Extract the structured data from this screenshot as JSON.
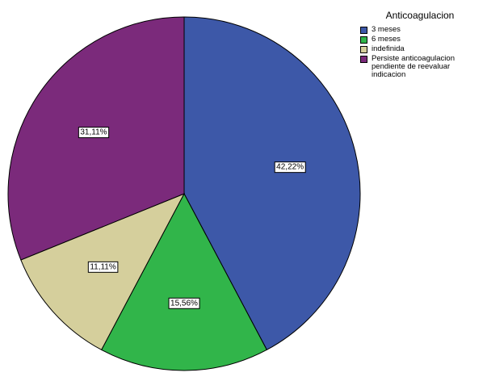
{
  "chart_data": {
    "type": "pie",
    "legend_title": "Anticoagulacion",
    "legend_position": "top-right",
    "categories": [
      "3 meses",
      "6 meses",
      "indefinida",
      "Persiste anticoagulacion\npendiente de reevaluar\nindicacion"
    ],
    "values": [
      42.22,
      15.56,
      11.11,
      31.11
    ],
    "labels": [
      "42,22%",
      "15,56%",
      "11,11%",
      "31,11%"
    ],
    "colors": [
      "#3d58a8",
      "#31b54a",
      "#d5cf9c",
      "#7b2a7b"
    ],
    "start": "top",
    "direction": "clockwise"
  }
}
